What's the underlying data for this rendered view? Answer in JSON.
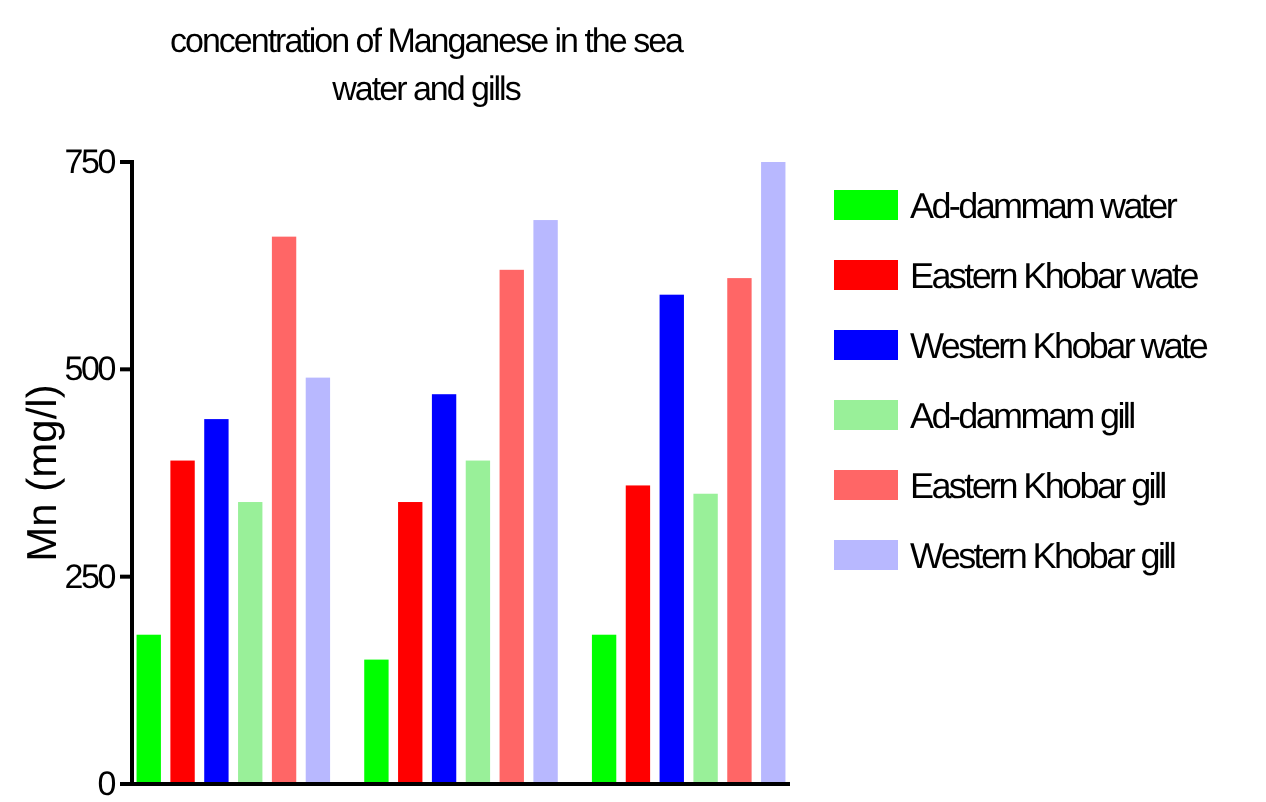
{
  "chart_data": {
    "type": "bar",
    "title": "concentration of Manganese in the sea water and gills",
    "ylabel": "Mn (mg/l)",
    "categories": [
      null,
      null,
      null
    ],
    "ylim": [
      0,
      750
    ],
    "yticks": [
      0,
      250,
      500,
      750
    ],
    "grid": false,
    "legend": "right",
    "series": [
      {
        "name": "Ad-dammam water",
        "color": "#00ff00",
        "values": [
          180,
          150,
          180
        ]
      },
      {
        "name": "Eastern Khobar wate",
        "color": "#ff0000",
        "values": [
          390,
          340,
          360
        ]
      },
      {
        "name": "Western Khobar wate",
        "color": "#0000ff",
        "values": [
          440,
          470,
          590
        ]
      },
      {
        "name": "Ad-dammam gill",
        "color": "#99f099",
        "values": [
          340,
          390,
          350
        ]
      },
      {
        "name": "Eastern Khobar gill",
        "color": "#ff6666",
        "values": [
          660,
          620,
          610
        ]
      },
      {
        "name": "Western Khobar gill",
        "color": "#b8b8ff",
        "values": [
          490,
          680,
          750
        ]
      }
    ]
  }
}
